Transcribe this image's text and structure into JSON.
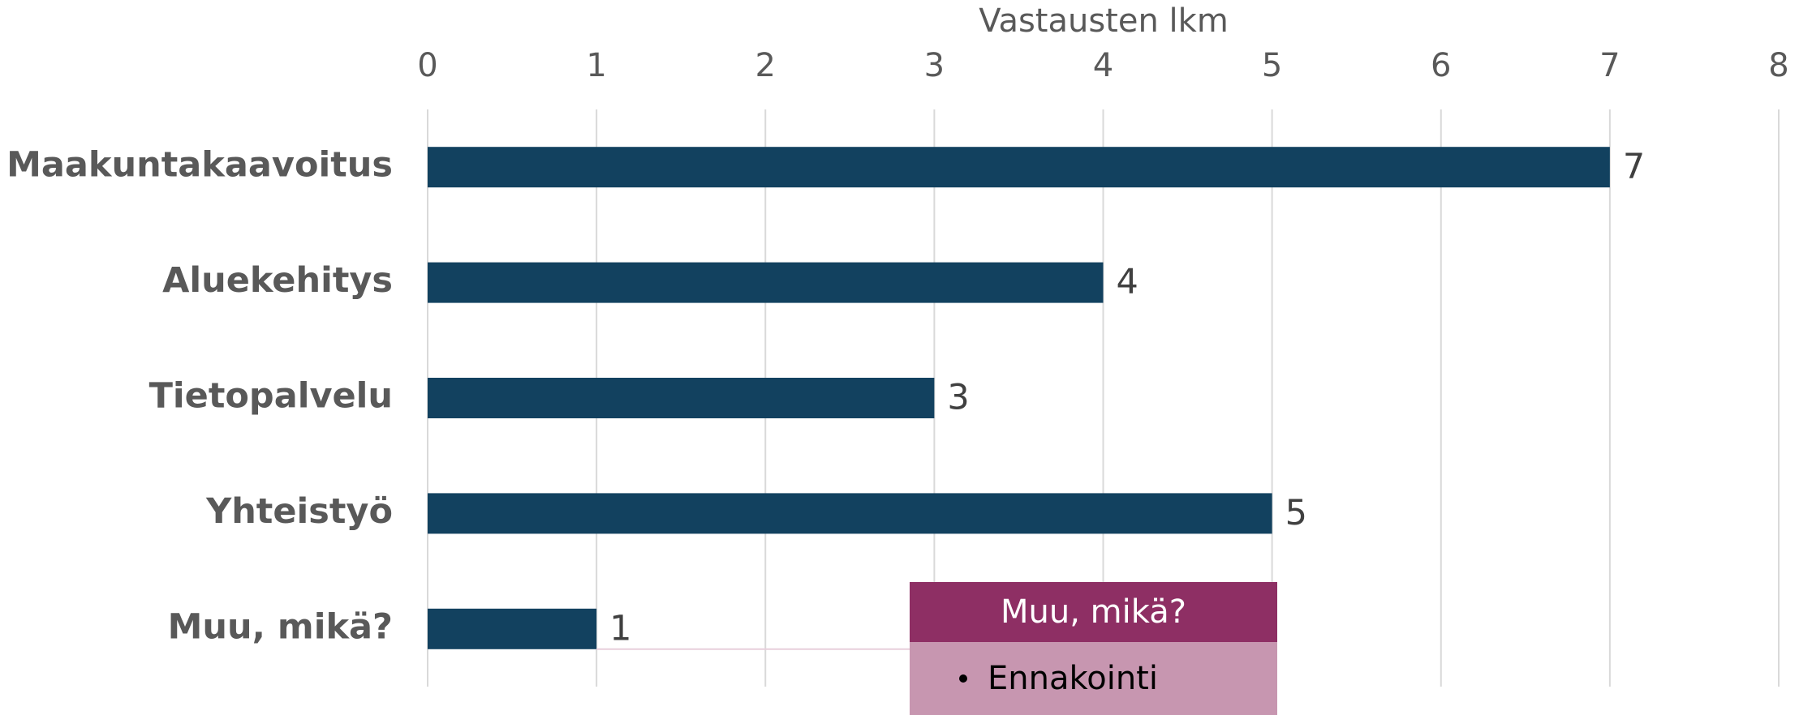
{
  "chart_data": {
    "type": "bar",
    "orientation": "horizontal",
    "x_label": "Vastausten lkm",
    "categories": [
      "Maakuntakaavoitus",
      "Aluekehitys",
      "Tietopalvelu",
      "Yhteistyö",
      "Muu, mikä?"
    ],
    "values": [
      7,
      4,
      3,
      5,
      1
    ],
    "color": "#12415f",
    "xlim": [
      0,
      8
    ],
    "xticks": [
      0,
      1,
      2,
      3,
      4,
      5,
      6,
      7,
      8
    ],
    "grid": true,
    "annotation": {
      "title": "Muu, mikä?",
      "items": [
        "Ennakointi"
      ]
    }
  }
}
